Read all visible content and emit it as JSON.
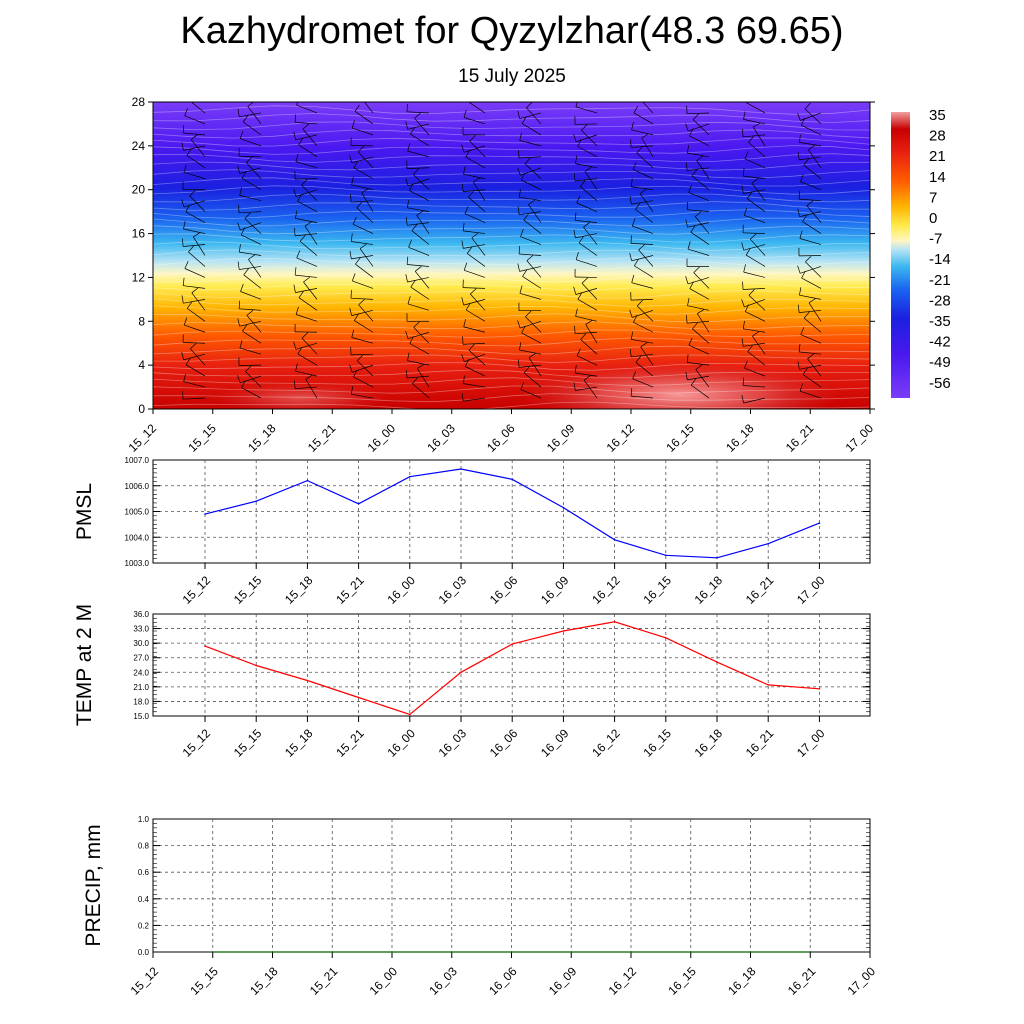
{
  "title": "Kazhydromet for Qyzylzhar(48.3 69.65)",
  "subtitle": "15 July 2025",
  "time_labels": [
    "15_12",
    "15_15",
    "15_18",
    "15_21",
    "16_00",
    "16_03",
    "16_06",
    "16_09",
    "16_12",
    "16_15",
    "16_18",
    "16_21",
    "17_00"
  ],
  "colors": {
    "pmsl_line": "#0000ff",
    "temp_line": "#ff0000",
    "precip_line": "#006400",
    "grid": "#555555"
  },
  "chart_data": [
    {
      "type": "heatmap",
      "panel": "cross-section",
      "xlabel": "",
      "ylabel": "",
      "x_ticks": [
        "15_12",
        "15_15",
        "15_18",
        "15_21",
        "16_00",
        "16_03",
        "16_06",
        "16_09",
        "16_12",
        "16_15",
        "16_18",
        "16_21",
        "17_00"
      ],
      "y_ticks": [
        0,
        4,
        8,
        12,
        16,
        20,
        24,
        28
      ],
      "ylim": [
        0,
        28
      ],
      "colorbar_labels": [
        35,
        28,
        21,
        14,
        7,
        0,
        -7,
        -14,
        -21,
        -28,
        -35,
        -42,
        -49,
        -56
      ],
      "colorbar_range": [
        -60,
        38
      ],
      "overlay": "wind barbs"
    },
    {
      "type": "line",
      "panel": "pmsl",
      "ylabel": "PMSL",
      "categories": [
        "15_12",
        "15_15",
        "15_18",
        "15_21",
        "16_00",
        "16_03",
        "16_06",
        "16_09",
        "16_12",
        "16_15",
        "16_18",
        "16_21",
        "17_00"
      ],
      "values": [
        1004.9,
        1005.4,
        1006.2,
        1005.3,
        1006.35,
        1006.65,
        1006.25,
        1005.15,
        1003.9,
        1003.3,
        1003.2,
        1003.75,
        1004.55
      ],
      "ylim": [
        1003.0,
        1007.0
      ],
      "y_ticks": [
        "1003.0",
        "1004.0",
        "1005.0",
        "1006.0",
        "1007.0"
      ],
      "grid": true
    },
    {
      "type": "line",
      "panel": "temp",
      "ylabel": "TEMP at 2 M",
      "categories": [
        "15_12",
        "15_15",
        "15_18",
        "15_21",
        "16_00",
        "16_03",
        "16_06",
        "16_09",
        "16_12",
        "16_15",
        "16_18",
        "16_21",
        "17_00"
      ],
      "values": [
        29.4,
        25.4,
        22.3,
        18.8,
        15.3,
        24.0,
        29.8,
        32.5,
        34.4,
        31.1,
        26.1,
        21.4,
        20.6
      ],
      "ylim": [
        15.0,
        36.0
      ],
      "y_ticks": [
        "15.0",
        "18.0",
        "21.0",
        "24.0",
        "27.0",
        "30.0",
        "33.0",
        "36.0"
      ],
      "grid": true
    },
    {
      "type": "line",
      "panel": "precip",
      "ylabel": "PRECIP, mm",
      "categories": [
        "15_15",
        "15_18",
        "15_21",
        "16_00",
        "16_03",
        "16_06",
        "16_09",
        "16_12",
        "16_15",
        "16_18",
        "16_21"
      ],
      "values": [
        0,
        0,
        0,
        0,
        0,
        0,
        0,
        0,
        0,
        0,
        0
      ],
      "x_ticks": [
        "15_12",
        "15_15",
        "15_18",
        "15_21",
        "16_00",
        "16_03",
        "16_06",
        "16_09",
        "16_12",
        "16_15",
        "16_18",
        "16_21",
        "17_00"
      ],
      "ylim": [
        0,
        1.0
      ],
      "y_ticks": [
        "0.0",
        "0.2",
        "0.4",
        "0.6",
        "0.8",
        "1.0"
      ],
      "grid": true
    }
  ]
}
